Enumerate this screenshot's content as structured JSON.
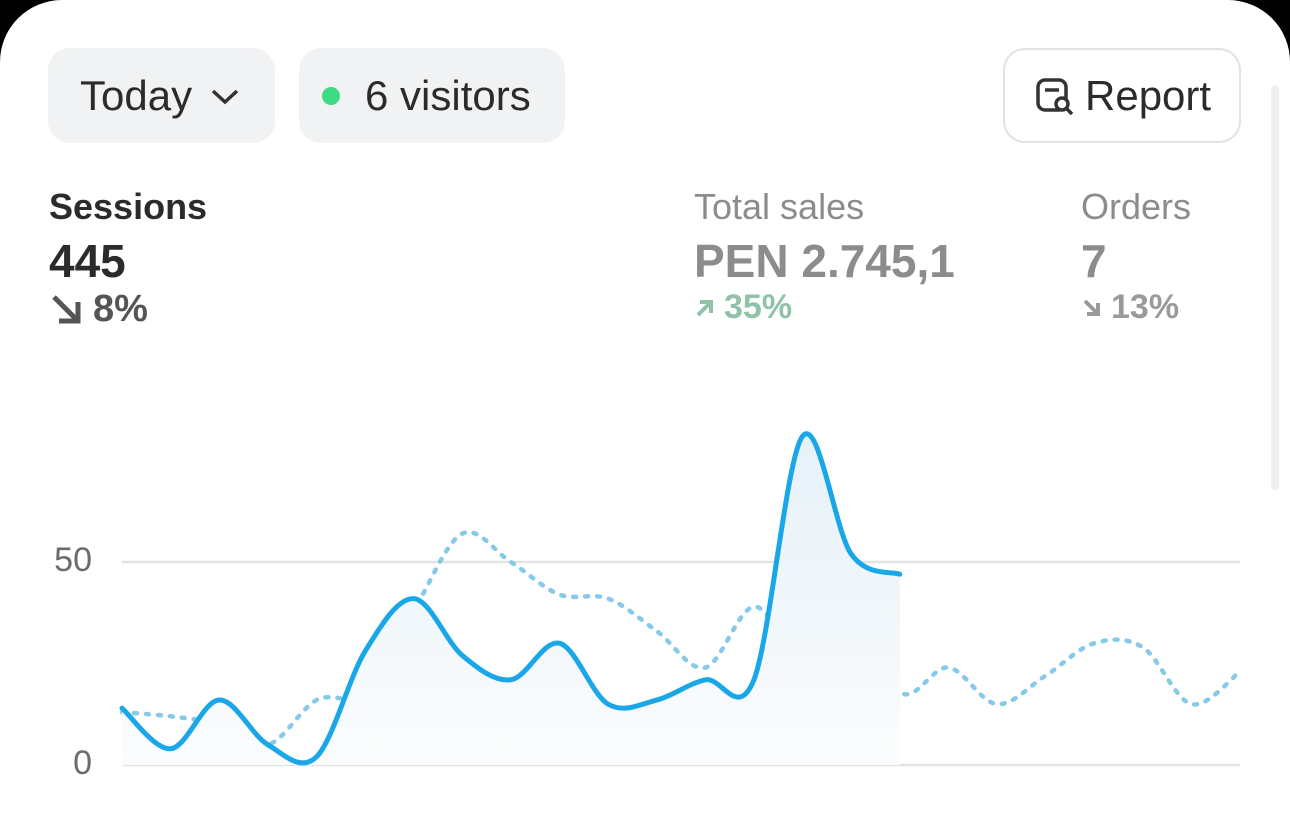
{
  "filters": {
    "period": "Today",
    "visitors": "6 visitors",
    "report": "Report"
  },
  "metrics": [
    {
      "label": "Sessions",
      "value": "445",
      "change": "8%"
    },
    {
      "label": "Total sales",
      "value": "PEN 2.745,1",
      "change": "35%"
    },
    {
      "label": "Orders",
      "value": "7",
      "change": "13%"
    }
  ],
  "chart_data": {
    "type": "line",
    "categories": [
      null,
      null,
      null,
      null,
      null,
      null,
      null,
      null,
      null,
      null,
      null,
      null,
      null,
      null,
      null,
      null,
      null,
      null,
      null,
      null,
      null,
      null,
      null,
      null
    ],
    "series": [
      {
        "color": "#1aa7e8",
        "values": [
          14,
          4,
          16,
          5,
          2,
          28,
          41,
          27,
          21,
          30,
          15,
          16,
          21,
          21,
          81,
          52,
          47,
          null,
          null,
          null,
          null,
          null,
          null,
          null
        ]
      },
      {
        "color": "#86c9e8",
        "dashed": true,
        "values": [
          13,
          12,
          10,
          5,
          16,
          18,
          38,
          57,
          50,
          42,
          41,
          33,
          24,
          39,
          27,
          42,
          18,
          24,
          15,
          22,
          30,
          29,
          15,
          23
        ]
      }
    ],
    "ylim": [
      0,
      85
    ],
    "yticks": [
      0,
      50
    ],
    "grid": true
  }
}
